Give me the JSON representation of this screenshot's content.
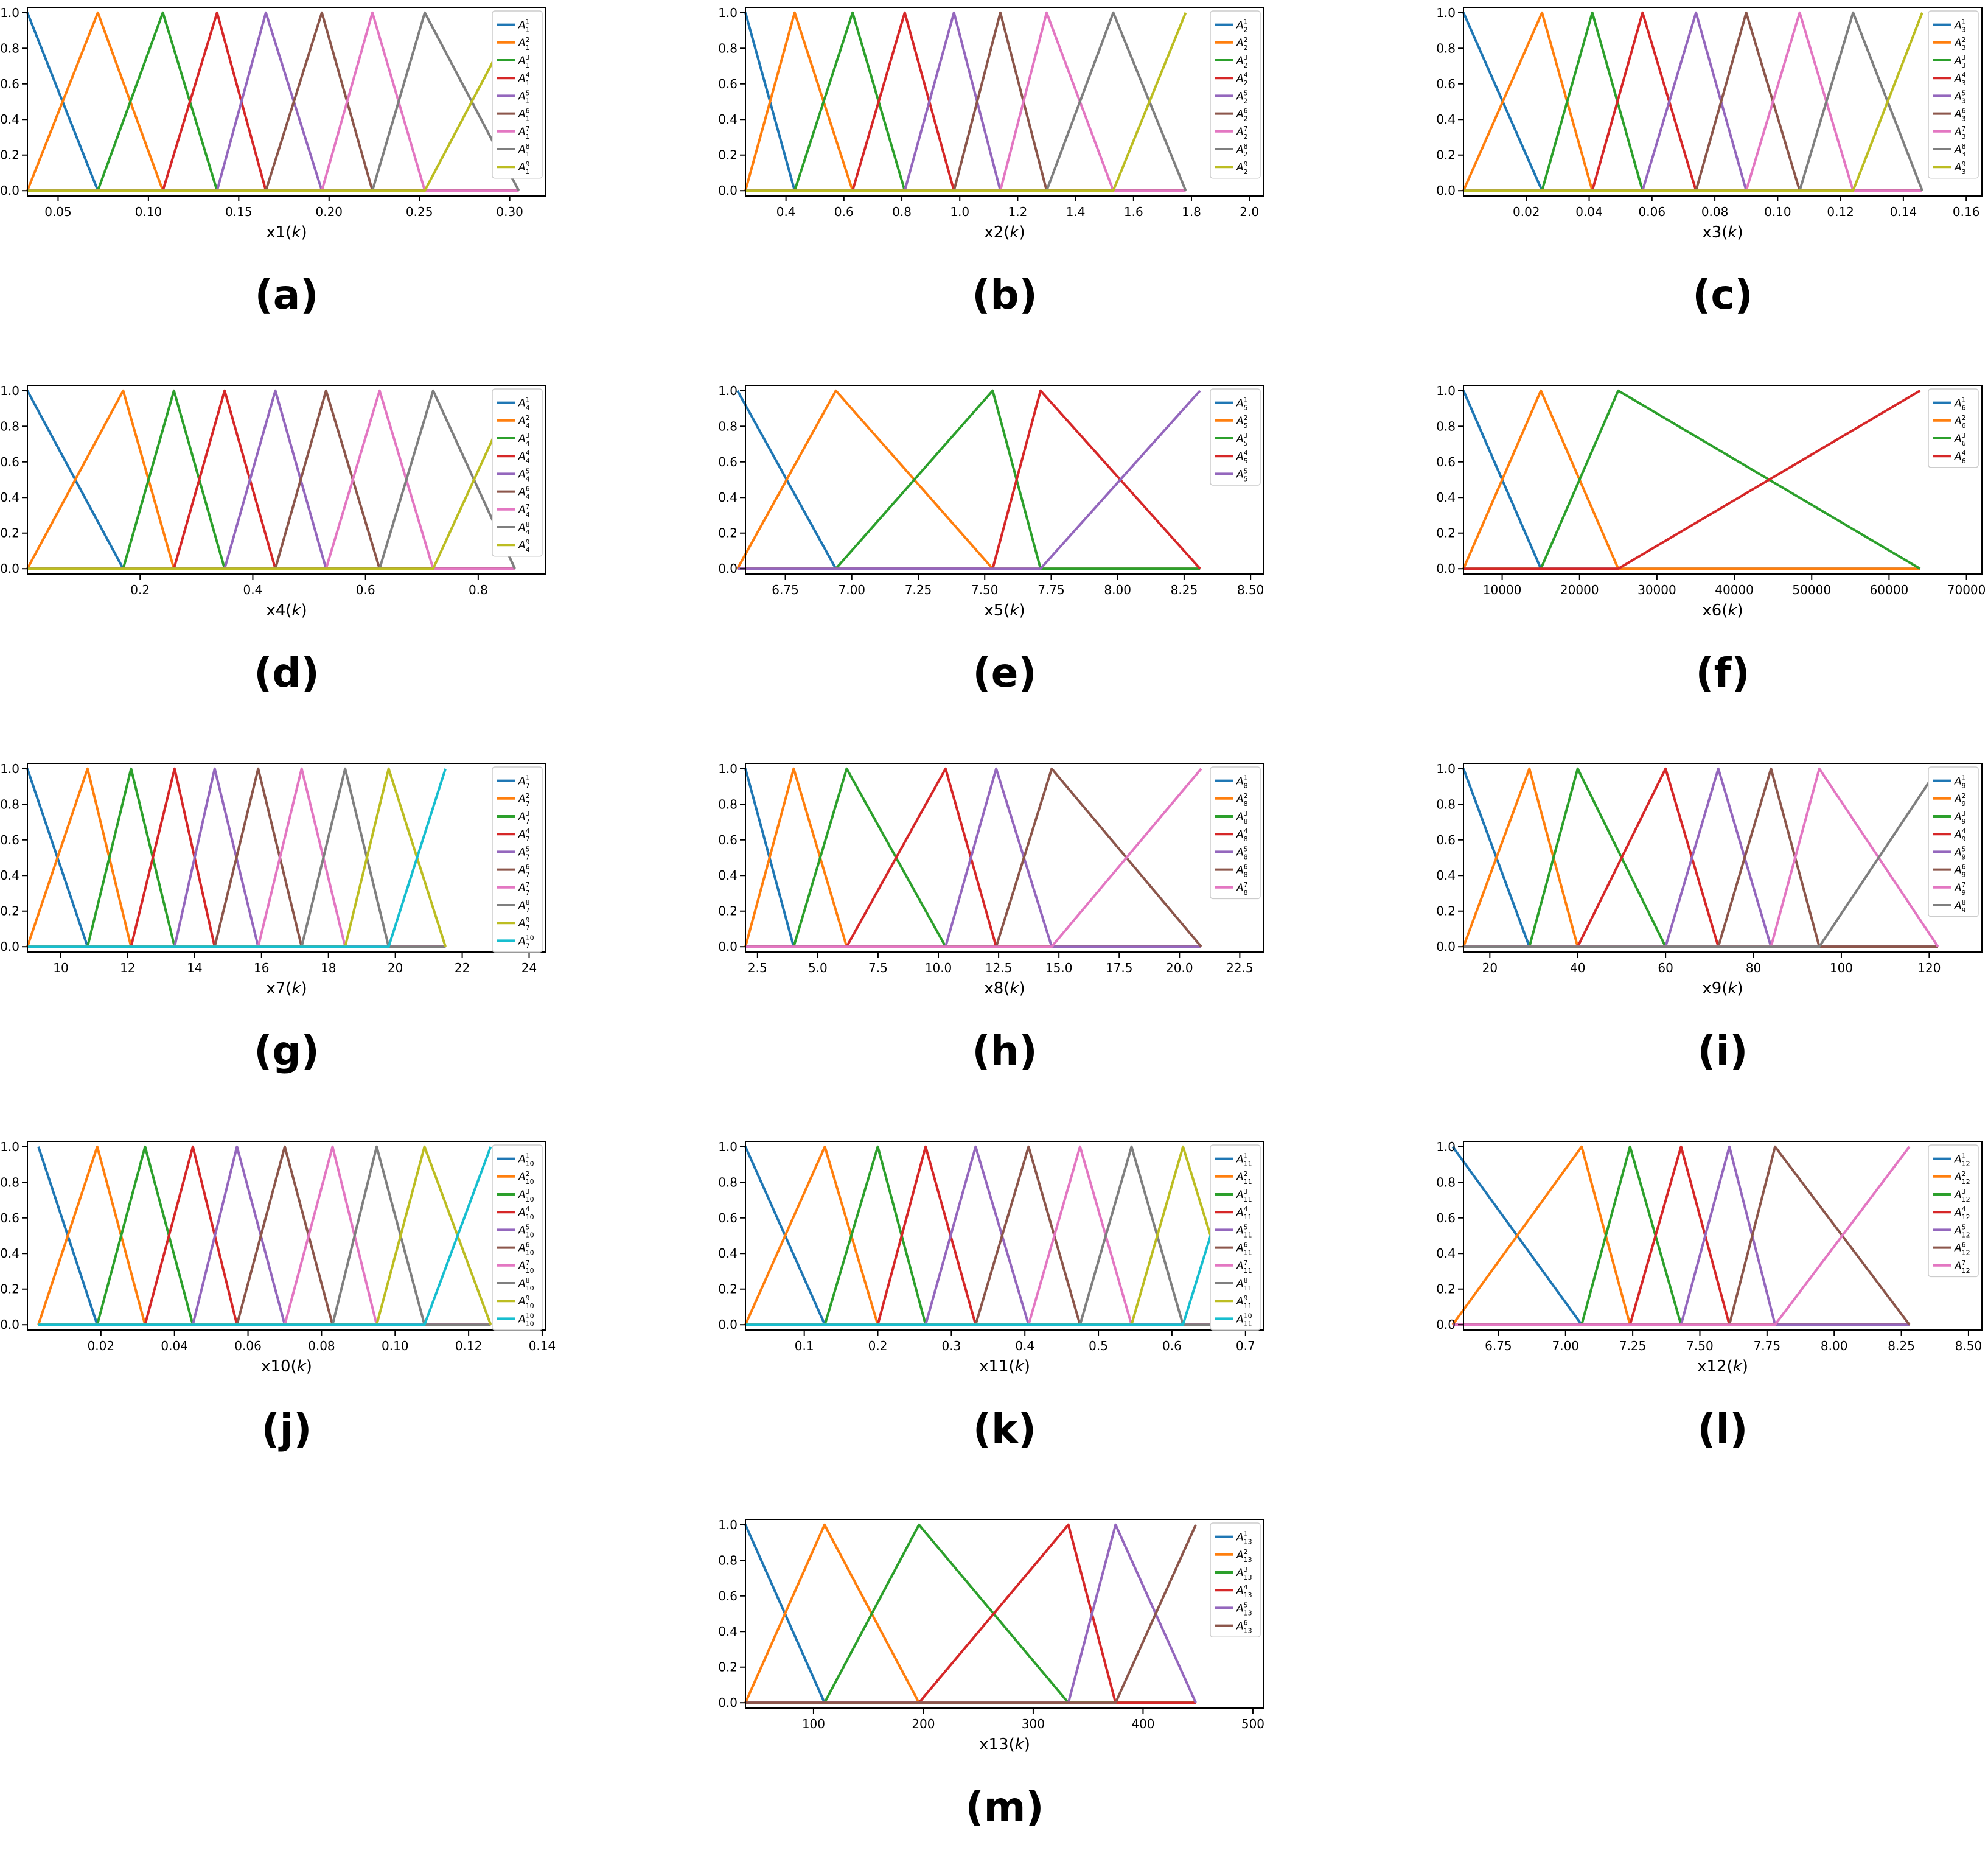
{
  "colors": [
    "#1f77b4",
    "#ff7f0e",
    "#2ca02c",
    "#d62728",
    "#9467bd",
    "#8c564b",
    "#e377c2",
    "#7f7f7f",
    "#bcbd22",
    "#17becf"
  ],
  "chart_data": [
    {
      "type": "line",
      "caption": "(a)",
      "xlabel": "x1(k)",
      "xlim": [
        0.033,
        0.32
      ],
      "ylim": [
        -0.03,
        1.03
      ],
      "xticks": [
        "0.05",
        "0.10",
        "0.15",
        "0.20",
        "0.25",
        "0.30"
      ],
      "yticks": [
        "0.0",
        "0.2",
        "0.4",
        "0.6",
        "0.8",
        "1.0"
      ],
      "peaks": [
        0.033,
        0.072,
        0.108,
        0.138,
        0.165,
        0.196,
        0.224,
        0.253,
        0.305
      ],
      "legend": [
        [
          "A",
          "1",
          "1"
        ],
        [
          "A",
          "1",
          "2"
        ],
        [
          "A",
          "1",
          "3"
        ],
        [
          "A",
          "1",
          "4"
        ],
        [
          "A",
          "1",
          "5"
        ],
        [
          "A",
          "1",
          "6"
        ],
        [
          "A",
          "1",
          "7"
        ],
        [
          "A",
          "1",
          "8"
        ],
        [
          "A",
          "1",
          "9"
        ]
      ]
    },
    {
      "type": "line",
      "caption": "(b)",
      "xlabel": "x2(k)",
      "xlim": [
        0.26,
        2.05
      ],
      "ylim": [
        -0.03,
        1.03
      ],
      "xticks": [
        "0.4",
        "0.6",
        "0.8",
        "1.0",
        "1.2",
        "1.4",
        "1.6",
        "1.8",
        "2.0"
      ],
      "yticks": [
        "0.0",
        "0.2",
        "0.4",
        "0.6",
        "0.8",
        "1.0"
      ],
      "peaks": [
        0.26,
        0.43,
        0.63,
        0.81,
        0.98,
        1.14,
        1.3,
        1.53,
        1.78
      ],
      "legend": [
        [
          "A",
          "2",
          "1"
        ],
        [
          "A",
          "2",
          "2"
        ],
        [
          "A",
          "2",
          "3"
        ],
        [
          "A",
          "2",
          "4"
        ],
        [
          "A",
          "2",
          "5"
        ],
        [
          "A",
          "2",
          "6"
        ],
        [
          "A",
          "2",
          "7"
        ],
        [
          "A",
          "2",
          "8"
        ],
        [
          "A",
          "2",
          "9"
        ]
      ]
    },
    {
      "type": "line",
      "caption": "(c)",
      "xlabel": "x3(k)",
      "xlim": [
        0.0,
        0.165
      ],
      "ylim": [
        -0.03,
        1.03
      ],
      "xticks": [
        "0.02",
        "0.04",
        "0.06",
        "0.08",
        "0.10",
        "0.12",
        "0.14",
        "0.16"
      ],
      "yticks": [
        "0.0",
        "0.2",
        "0.4",
        "0.6",
        "0.8",
        "1.0"
      ],
      "peaks": [
        0.0,
        0.025,
        0.041,
        0.057,
        0.074,
        0.09,
        0.107,
        0.124,
        0.146
      ],
      "legend": [
        [
          "A",
          "3",
          "1"
        ],
        [
          "A",
          "3",
          "2"
        ],
        [
          "A",
          "3",
          "3"
        ],
        [
          "A",
          "3",
          "4"
        ],
        [
          "A",
          "3",
          "5"
        ],
        [
          "A",
          "3",
          "6"
        ],
        [
          "A",
          "3",
          "7"
        ],
        [
          "A",
          "3",
          "8"
        ],
        [
          "A",
          "3",
          "9"
        ]
      ]
    },
    {
      "type": "line",
      "caption": "(d)",
      "xlabel": "x4(k)",
      "xlim": [
        0.0,
        0.92
      ],
      "ylim": [
        -0.03,
        1.03
      ],
      "xticks": [
        "0.2",
        "0.4",
        "0.6",
        "0.8"
      ],
      "yticks": [
        "0.0",
        "0.2",
        "0.4",
        "0.6",
        "0.8",
        "1.0"
      ],
      "peaks": [
        0.0,
        0.17,
        0.26,
        0.35,
        0.44,
        0.53,
        0.625,
        0.72,
        0.865
      ],
      "legend": [
        [
          "A",
          "4",
          "1"
        ],
        [
          "A",
          "4",
          "2"
        ],
        [
          "A",
          "4",
          "3"
        ],
        [
          "A",
          "4",
          "4"
        ],
        [
          "A",
          "4",
          "5"
        ],
        [
          "A",
          "4",
          "6"
        ],
        [
          "A",
          "4",
          "7"
        ],
        [
          "A",
          "4",
          "8"
        ],
        [
          "A",
          "4",
          "9"
        ]
      ]
    },
    {
      "type": "line",
      "caption": "(e)",
      "xlabel": "x5(k)",
      "xlim": [
        6.6,
        8.55
      ],
      "ylim": [
        -0.03,
        1.03
      ],
      "xticks": [
        "6.75",
        "7.00",
        "7.25",
        "7.50",
        "7.75",
        "8.00",
        "8.25",
        "8.50"
      ],
      "yticks": [
        "0.0",
        "0.2",
        "0.4",
        "0.6",
        "0.8",
        "1.0"
      ],
      "peaks": [
        6.57,
        6.94,
        7.53,
        7.71,
        8.31
      ],
      "legend": [
        [
          "A",
          "5",
          "1"
        ],
        [
          "A",
          "5",
          "2"
        ],
        [
          "A",
          "5",
          "3"
        ],
        [
          "A",
          "5",
          "4"
        ],
        [
          "A",
          "5",
          "5"
        ]
      ]
    },
    {
      "type": "line",
      "caption": "(f)",
      "xlabel": "x6(k)",
      "xlim": [
        5000,
        72000
      ],
      "ylim": [
        -0.03,
        1.03
      ],
      "xticks": [
        "10000",
        "20000",
        "30000",
        "40000",
        "50000",
        "60000",
        "70000"
      ],
      "yticks": [
        "0.0",
        "0.2",
        "0.4",
        "0.6",
        "0.8",
        "1.0"
      ],
      "peaks": [
        5000,
        15000,
        25000,
        64000
      ],
      "legend": [
        [
          "A",
          "6",
          "1"
        ],
        [
          "A",
          "6",
          "2"
        ],
        [
          "A",
          "6",
          "3"
        ],
        [
          "A",
          "6",
          "4"
        ]
      ]
    },
    {
      "type": "line",
      "caption": "(g)",
      "xlabel": "x7(k)",
      "xlim": [
        9.0,
        24.5
      ],
      "ylim": [
        -0.03,
        1.03
      ],
      "xticks": [
        "10",
        "12",
        "14",
        "16",
        "18",
        "20",
        "22",
        "24"
      ],
      "yticks": [
        "0.0",
        "0.2",
        "0.4",
        "0.6",
        "0.8",
        "1.0"
      ],
      "peaks": [
        9.0,
        10.8,
        12.1,
        13.4,
        14.6,
        15.9,
        17.2,
        18.5,
        19.8,
        21.5
      ],
      "legend": [
        [
          "A",
          "7",
          "1"
        ],
        [
          "A",
          "7",
          "2"
        ],
        [
          "A",
          "7",
          "3"
        ],
        [
          "A",
          "7",
          "4"
        ],
        [
          "A",
          "7",
          "5"
        ],
        [
          "A",
          "7",
          "6"
        ],
        [
          "A",
          "7",
          "7"
        ],
        [
          "A",
          "7",
          "8"
        ],
        [
          "A",
          "7",
          "9"
        ],
        [
          "A",
          "7",
          "10"
        ]
      ]
    },
    {
      "type": "line",
      "caption": "(h)",
      "xlabel": "x8(k)",
      "xlim": [
        2.0,
        23.5
      ],
      "ylim": [
        -0.03,
        1.03
      ],
      "xticks": [
        "2.5",
        "5.0",
        "7.5",
        "10.0",
        "12.5",
        "15.0",
        "17.5",
        "20.0",
        "22.5"
      ],
      "yticks": [
        "0.0",
        "0.2",
        "0.4",
        "0.6",
        "0.8",
        "1.0"
      ],
      "peaks": [
        2.0,
        4.0,
        6.2,
        10.3,
        12.4,
        14.7,
        20.9
      ],
      "legend": [
        [
          "A",
          "8",
          "1"
        ],
        [
          "A",
          "8",
          "2"
        ],
        [
          "A",
          "8",
          "3"
        ],
        [
          "A",
          "8",
          "4"
        ],
        [
          "A",
          "8",
          "5"
        ],
        [
          "A",
          "8",
          "6"
        ],
        [
          "A",
          "8",
          "7"
        ]
      ]
    },
    {
      "type": "line",
      "caption": "(i)",
      "xlabel": "x9(k)",
      "xlim": [
        14,
        132
      ],
      "ylim": [
        -0.03,
        1.03
      ],
      "xticks": [
        "20",
        "40",
        "60",
        "80",
        "100",
        "120"
      ],
      "yticks": [
        "0.0",
        "0.2",
        "0.4",
        "0.6",
        "0.8",
        "1.0"
      ],
      "peaks": [
        14,
        29,
        40,
        60,
        72,
        84,
        95,
        122
      ],
      "legend": [
        [
          "A",
          "9",
          "1"
        ],
        [
          "A",
          "9",
          "2"
        ],
        [
          "A",
          "9",
          "3"
        ],
        [
          "A",
          "9",
          "4"
        ],
        [
          "A",
          "9",
          "5"
        ],
        [
          "A",
          "9",
          "6"
        ],
        [
          "A",
          "9",
          "7"
        ],
        [
          "A",
          "9",
          "8"
        ]
      ]
    },
    {
      "type": "line",
      "caption": "(j)",
      "xlabel": "x10(k)",
      "xlim": [
        0.0,
        0.141
      ],
      "ylim": [
        -0.03,
        1.03
      ],
      "xticks": [
        "0.02",
        "0.04",
        "0.06",
        "0.08",
        "0.10",
        "0.12",
        "0.14"
      ],
      "yticks": [
        "0.0",
        "0.2",
        "0.4",
        "0.6",
        "0.8",
        "1.0"
      ],
      "peaks": [
        0.003,
        0.019,
        0.032,
        0.045,
        0.057,
        0.07,
        0.083,
        0.095,
        0.108,
        0.126
      ],
      "legend": [
        [
          "A",
          "10",
          "1"
        ],
        [
          "A",
          "10",
          "2"
        ],
        [
          "A",
          "10",
          "3"
        ],
        [
          "A",
          "10",
          "4"
        ],
        [
          "A",
          "10",
          "5"
        ],
        [
          "A",
          "10",
          "6"
        ],
        [
          "A",
          "10",
          "7"
        ],
        [
          "A",
          "10",
          "8"
        ],
        [
          "A",
          "10",
          "9"
        ],
        [
          "A",
          "10",
          "10"
        ]
      ]
    },
    {
      "type": "line",
      "caption": "(k)",
      "xlabel": "x11(k)",
      "xlim": [
        0.02,
        0.725
      ],
      "ylim": [
        -0.03,
        1.03
      ],
      "xticks": [
        "0.1",
        "0.2",
        "0.3",
        "0.4",
        "0.5",
        "0.6",
        "0.7"
      ],
      "yticks": [
        "0.0",
        "0.2",
        "0.4",
        "0.6",
        "0.8",
        "1.0"
      ],
      "peaks": [
        0.02,
        0.128,
        0.2,
        0.265,
        0.333,
        0.405,
        0.475,
        0.545,
        0.615,
        0.69
      ],
      "legend": [
        [
          "A",
          "11",
          "1"
        ],
        [
          "A",
          "11",
          "2"
        ],
        [
          "A",
          "11",
          "3"
        ],
        [
          "A",
          "11",
          "4"
        ],
        [
          "A",
          "11",
          "5"
        ],
        [
          "A",
          "11",
          "6"
        ],
        [
          "A",
          "11",
          "7"
        ],
        [
          "A",
          "11",
          "8"
        ],
        [
          "A",
          "11",
          "9"
        ],
        [
          "A",
          "11",
          "10"
        ]
      ]
    },
    {
      "type": "line",
      "caption": "(l)",
      "xlabel": "x12(k)",
      "xlim": [
        6.62,
        8.55
      ],
      "ylim": [
        -0.03,
        1.03
      ],
      "xticks": [
        "6.75",
        "7.00",
        "7.25",
        "7.50",
        "7.75",
        "8.00",
        "8.25",
        "8.50"
      ],
      "yticks": [
        "0.0",
        "0.2",
        "0.4",
        "0.6",
        "0.8",
        "1.0"
      ],
      "peaks": [
        6.58,
        7.06,
        7.24,
        7.43,
        7.61,
        7.78,
        8.28
      ],
      "legend": [
        [
          "A",
          "12",
          "1"
        ],
        [
          "A",
          "12",
          "2"
        ],
        [
          "A",
          "12",
          "3"
        ],
        [
          "A",
          "12",
          "4"
        ],
        [
          "A",
          "12",
          "5"
        ],
        [
          "A",
          "12",
          "6"
        ],
        [
          "A",
          "12",
          "7"
        ]
      ]
    },
    {
      "type": "line",
      "caption": "(m)",
      "xlabel": "x13(k)",
      "xlim": [
        38,
        510
      ],
      "ylim": [
        -0.03,
        1.03
      ],
      "xticks": [
        "100",
        "200",
        "300",
        "400",
        "500"
      ],
      "yticks": [
        "0.0",
        "0.2",
        "0.4",
        "0.6",
        "0.8",
        "1.0"
      ],
      "peaks": [
        38,
        110,
        196,
        332,
        375,
        448
      ],
      "legend": [
        [
          "A",
          "13",
          "1"
        ],
        [
          "A",
          "13",
          "2"
        ],
        [
          "A",
          "13",
          "3"
        ],
        [
          "A",
          "13",
          "4"
        ],
        [
          "A",
          "13",
          "5"
        ],
        [
          "A",
          "13",
          "6"
        ]
      ]
    }
  ]
}
